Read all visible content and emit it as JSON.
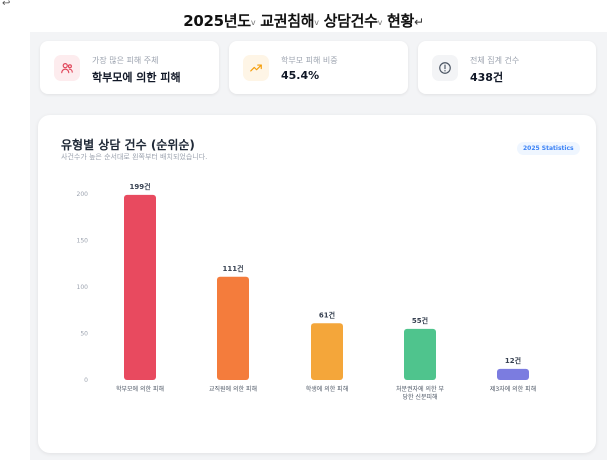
{
  "doc": {
    "title_parts": [
      "2025년도",
      "교권침해",
      "상담건수",
      "현황"
    ],
    "return_mark": "↵",
    "corner_mark": "↩"
  },
  "stats": [
    {
      "icon": "users-icon",
      "label": "가장 많은 피해 주체",
      "value": "학부모에 의한 피해",
      "accent": "#e0465a",
      "bg": "#fdecee"
    },
    {
      "icon": "trend-up-icon",
      "label": "학부모 피해 비중",
      "value": "45.4%",
      "accent": "#f59e0b",
      "bg": "#fef5e6"
    },
    {
      "icon": "alert-circle-icon",
      "label": "전체 집계 건수",
      "value": "438건",
      "accent": "#4b5563",
      "bg": "#f3f4f6"
    }
  ],
  "chart_card": {
    "title": "유형별 상담 건수 (순위순)",
    "subtitle": "사건수가 높은 순서대로 왼쪽부터 배치되었습니다.",
    "badge": "2025 Statistics"
  },
  "chart_data": {
    "type": "bar",
    "categories": [
      "학부모에 의한 피해",
      "교직원에 의한 피해",
      "학생에 의한 피해",
      "처분권자에 의한 부당한 신분피해",
      "제3자에 의한 피해"
    ],
    "category_lines": [
      [
        "학부모에 의한 피해"
      ],
      [
        "교직원에 의한 피해"
      ],
      [
        "학생에 의한 피해"
      ],
      [
        "처분권자에 의한 부",
        "당한 신분피해"
      ],
      [
        "제3자에 의한 피해"
      ]
    ],
    "values": [
      199,
      111,
      61,
      55,
      12
    ],
    "value_labels": [
      "199건",
      "111건",
      "61건",
      "55건",
      "12건"
    ],
    "colors": [
      "#e84a5f",
      "#f47c3c",
      "#f4a63a",
      "#4fc48d",
      "#7b7ce0"
    ],
    "title": "유형별 상담 건수 (순위순)",
    "xlabel": "",
    "ylabel": "",
    "ylim": [
      0,
      200
    ],
    "yticks": [
      0,
      50,
      100,
      150,
      200
    ],
    "grid": false,
    "legend": "none"
  }
}
